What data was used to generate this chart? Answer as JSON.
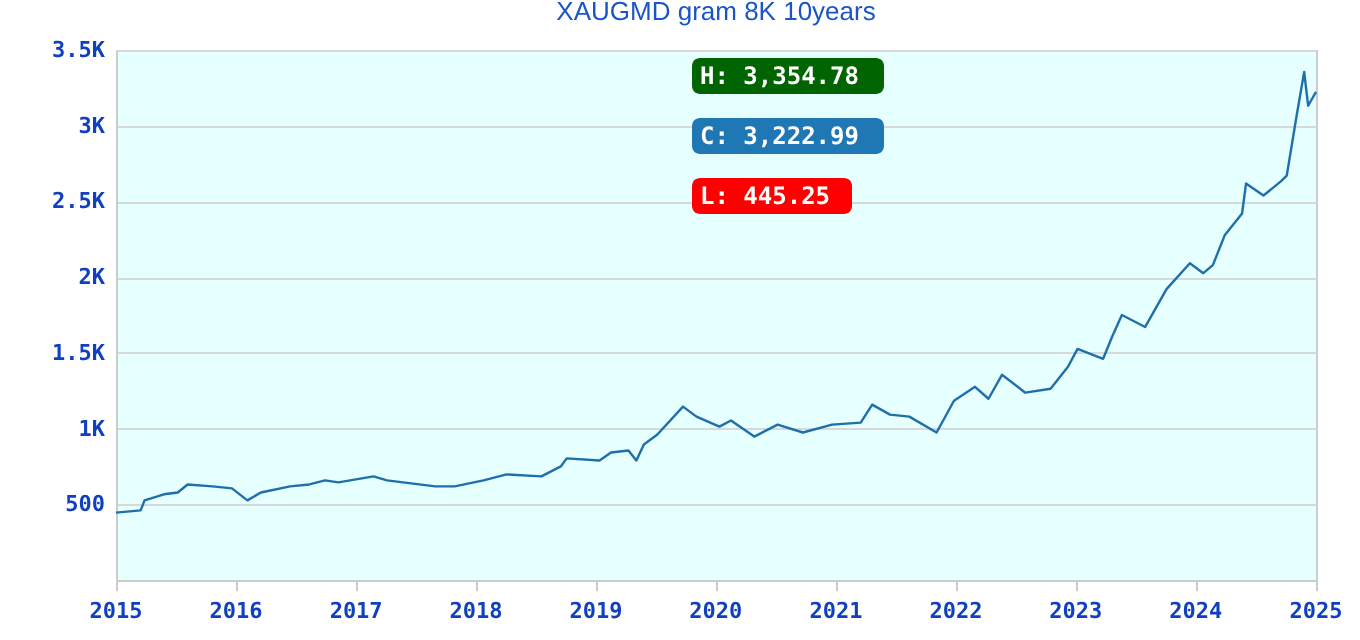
{
  "chart_data": {
    "type": "line",
    "title": "XAUGMD gram 8K 10years",
    "x": [
      "2015-01-01",
      "2015-03-17",
      "2015-03-29",
      "2015-05-27",
      "2015-07-08",
      "2015-08-07",
      "2015-10-22",
      "2015-12-20",
      "2016-02-05",
      "2016-03-17",
      "2016-06-14",
      "2016-08-12",
      "2016-09-28",
      "2016-11-08",
      "2017-02-23",
      "2017-04-05",
      "2017-08-30",
      "2017-10-28",
      "2018-01-24",
      "2018-04-04",
      "2018-07-19",
      "2018-09-16",
      "2018-10-04",
      "2019-01-12",
      "2019-02-16",
      "2019-04-10",
      "2019-05-04",
      "2019-05-27",
      "2019-07-07",
      "2019-09-23",
      "2019-11-03",
      "2020-01-12",
      "2020-02-16",
      "2020-04-27",
      "2020-07-07",
      "2020-09-22",
      "2020-12-20",
      "2021-03-17",
      "2021-04-21",
      "2021-06-14",
      "2021-08-12",
      "2021-11-03",
      "2021-12-26",
      "2022-02-28",
      "2022-04-10",
      "2022-05-21",
      "2022-07-31",
      "2022-10-16",
      "2022-12-08",
      "2023-01-06",
      "2023-03-25",
      "2023-04-21",
      "2023-05-21",
      "2023-07-31",
      "2023-10-04",
      "2023-12-14",
      "2024-01-24",
      "2024-02-22",
      "2024-03-29",
      "2024-05-21",
      "2024-06-02",
      "2024-07-25",
      "2024-09-16",
      "2024-10-04",
      "2024-11-03",
      "2024-11-26",
      "2024-12-08",
      "2025-01-01"
    ],
    "series": [
      {
        "color": "#1f6fa8",
        "values": [
          445,
          460,
          526,
          566,
          578,
          631,
          618,
          605,
          526,
          578,
          618,
          631,
          658,
          645,
          684,
          658,
          618,
          618,
          658,
          697,
          684,
          750,
          803,
          789,
          842,
          855,
          789,
          895,
          961,
          1145,
          1079,
          1013,
          1053,
          947,
          1026,
          974,
          1026,
          1039,
          1158,
          1092,
          1079,
          974,
          1184,
          1276,
          1197,
          1355,
          1237,
          1263,
          1408,
          1526,
          1461,
          1605,
          1750,
          1671,
          1921,
          2092,
          2026,
          2079,
          2276,
          2421,
          2618,
          2539,
          2632,
          2671,
          3066,
          3355,
          3132,
          3223
        ]
      }
    ],
    "xlim": [
      "2015-01-01",
      "2025-01-01"
    ],
    "xticks": [
      "2015",
      "2016",
      "2017",
      "2018",
      "2019",
      "2020",
      "2021",
      "2022",
      "2023",
      "2024",
      "2025"
    ],
    "ylim": [
      0,
      3500
    ],
    "yticks": [
      {
        "value": 500,
        "label": "500"
      },
      {
        "value": 1000,
        "label": "1K"
      },
      {
        "value": 1500,
        "label": "1.5K"
      },
      {
        "value": 2000,
        "label": "2K"
      },
      {
        "value": 2500,
        "label": "2.5K"
      },
      {
        "value": 3000,
        "label": "3K"
      },
      {
        "value": 3500,
        "label": "3.5K"
      }
    ],
    "grid": "y",
    "legend": false,
    "marker": "none",
    "line_style": "solid",
    "annotations": [
      "H: 3,354.78",
      "C: 3,222.99",
      "L: 445.25"
    ]
  }
}
